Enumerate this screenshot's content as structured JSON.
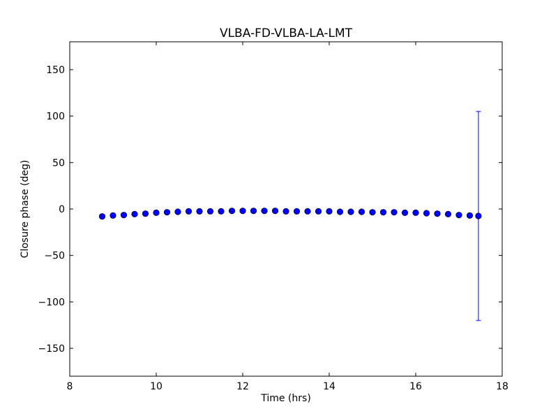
{
  "chart_data": {
    "type": "scatter",
    "title": "VLBA-FD-VLBA-LA-LMT",
    "xlabel": "Time (hrs)",
    "ylabel": "Closure phase (deg)",
    "xlim": [
      8,
      18
    ],
    "ylim": [
      -180,
      180
    ],
    "xticks": [
      8,
      10,
      12,
      14,
      16,
      18
    ],
    "yticks": [
      -150,
      -100,
      -50,
      0,
      50,
      100,
      150
    ],
    "xtick_labels": [
      "8",
      "10",
      "12",
      "14",
      "16",
      "18"
    ],
    "ytick_labels": [
      "−150",
      "−100",
      "−50",
      "0",
      "50",
      "100",
      "150"
    ],
    "grid": false,
    "marker_color": "#0000ff",
    "x": [
      8.75,
      9.0,
      9.25,
      9.5,
      9.75,
      10.0,
      10.25,
      10.5,
      10.75,
      11.0,
      11.25,
      11.5,
      11.75,
      12.0,
      12.25,
      12.5,
      12.75,
      13.0,
      13.25,
      13.5,
      13.75,
      14.0,
      14.25,
      14.5,
      14.75,
      15.0,
      15.25,
      15.5,
      15.75,
      16.0,
      16.25,
      16.5,
      16.75,
      17.0,
      17.25,
      17.45
    ],
    "y": [
      -8,
      -7,
      -6.5,
      -5.5,
      -5,
      -4,
      -3.5,
      -3,
      -2.5,
      -2.5,
      -2.5,
      -2.5,
      -2,
      -2,
      -2,
      -2,
      -2,
      -2.5,
      -2.5,
      -2.5,
      -2.5,
      -2.5,
      -3,
      -3,
      -3,
      -3.5,
      -3.5,
      -3.5,
      -4,
      -4,
      -4.5,
      -5,
      -5.5,
      -6.5,
      -7,
      -7.5
    ],
    "error_bars": [
      {
        "x": 17.45,
        "y": -7.5,
        "low": -120,
        "high": 105
      }
    ]
  }
}
